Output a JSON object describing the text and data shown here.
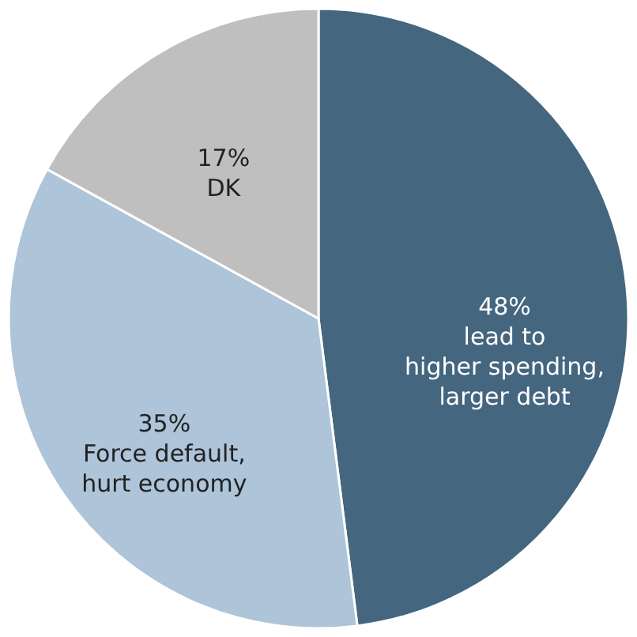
{
  "chart_data": {
    "type": "pie",
    "categories": [
      "lead to\nhigher spending,\nlarger debt",
      "Force default,\nhurt economy",
      "DK"
    ],
    "values": [
      48,
      35,
      17
    ],
    "value_labels": [
      "48%",
      "35%",
      "17%"
    ],
    "colors": [
      "#44667f",
      "#adc4d9",
      "#bfbfbf"
    ],
    "legend": false
  }
}
